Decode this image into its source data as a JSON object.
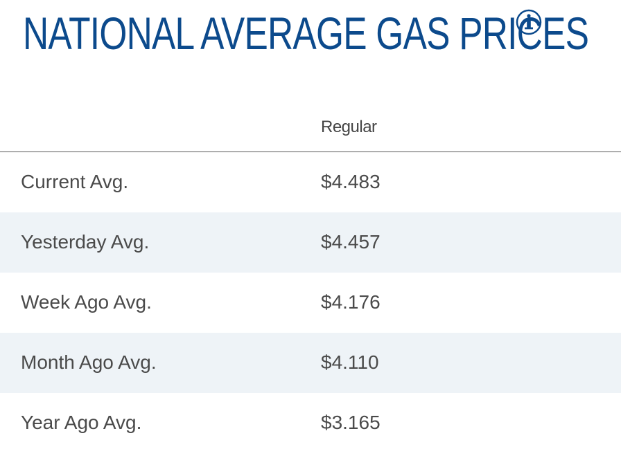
{
  "title": "NATIONAL AVERAGE GAS PRICES",
  "info_icon": "info-circle-icon",
  "colors": {
    "title": "#0c4a8c",
    "alt_row_bg": "#eef3f7",
    "text": "#4a4a4a"
  },
  "table": {
    "column_header": "Regular",
    "rows": [
      {
        "label": "Current Avg.",
        "value": "$4.483"
      },
      {
        "label": "Yesterday Avg.",
        "value": "$4.457"
      },
      {
        "label": "Week Ago Avg.",
        "value": "$4.176"
      },
      {
        "label": "Month Ago Avg.",
        "value": "$4.110"
      },
      {
        "label": "Year Ago Avg.",
        "value": "$3.165"
      }
    ]
  }
}
